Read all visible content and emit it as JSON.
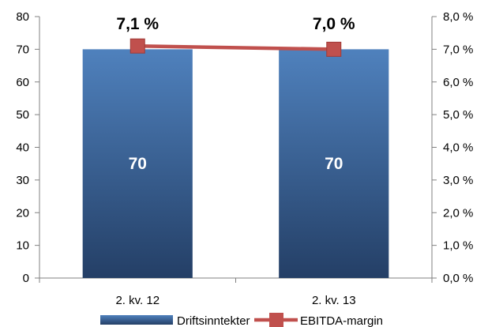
{
  "chart_data": {
    "type": "bar",
    "categories": [
      "2. kv. 12",
      "2. kv. 13"
    ],
    "y_left": {
      "min": 0,
      "max": 80,
      "ticks": [
        "0",
        "10",
        "20",
        "30",
        "40",
        "50",
        "60",
        "70",
        "80"
      ]
    },
    "y_right": {
      "min": 0.0,
      "max": 8.0,
      "ticks": [
        "0,0 %",
        "1,0 %",
        "2,0 %",
        "3,0 %",
        "4,0 %",
        "5,0 %",
        "6,0 %",
        "7,0 %",
        "8,0 %"
      ]
    },
    "series": [
      {
        "name": "Driftsinntekter",
        "kind": "bar",
        "axis": "left",
        "values": [
          70,
          70
        ],
        "labels": [
          "70",
          "70"
        ],
        "color": "#4f81bd"
      },
      {
        "name": "EBITDA-margin",
        "kind": "line",
        "axis": "right",
        "values": [
          7.1,
          7.0
        ],
        "labels": [
          "7,1 %",
          "7,0 %"
        ],
        "color": "#c0504d"
      }
    ],
    "grid": false,
    "legend_position": "bottom"
  }
}
